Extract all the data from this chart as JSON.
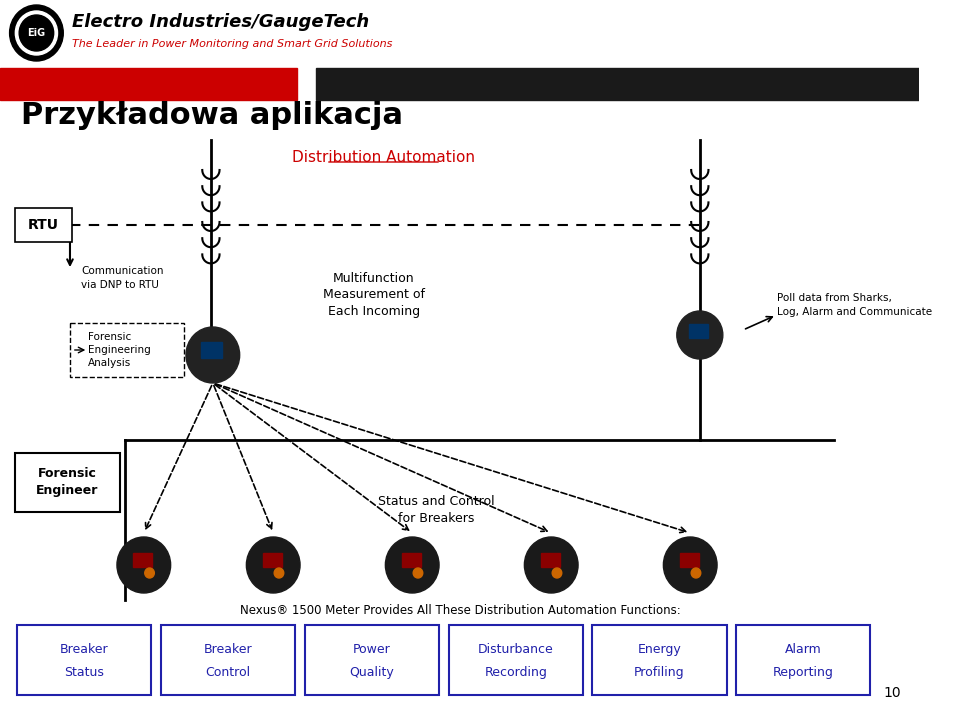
{
  "bg_color": "#ffffff",
  "header_bar_left_color": "#cc0000",
  "header_bar_right_color": "#1a1a1a",
  "logo_text": "Electro Industries/GaugeTech",
  "logo_sub": "The Leader in Power Monitoring and Smart Grid Solutions",
  "title": "Przykładowa aplikacja",
  "subtitle": "Distribution Automation",
  "rtu_label": "RTU",
  "comm_label": "Communication\nvia DNP to RTU",
  "forensic_eng_label": "Forensic\nEngineering\nAnalysis",
  "forensic_engineer_label": "Forensic\nEngineer",
  "multifunction_label": "Multifunction\nMeasurement of\nEach Incoming",
  "poll_label": "Poll data from Sharks,\nLog, Alarm and Communicate",
  "status_control_label": "Status and Control\nfor Breakers",
  "nexus_label": "Nexus® 1500 Meter Provides All These Distribution Automation Functions:",
  "box_labels": [
    [
      "Breaker",
      "Status"
    ],
    [
      "Breaker",
      "Control"
    ],
    [
      "Power",
      "Quality"
    ],
    [
      "Disturbance",
      "Recording"
    ],
    [
      "Energy",
      "Profiling"
    ],
    [
      "Alarm",
      "Reporting"
    ]
  ],
  "blue_color": "#2020aa",
  "red_color": "#cc0000",
  "black_color": "#000000",
  "page_number": "10"
}
